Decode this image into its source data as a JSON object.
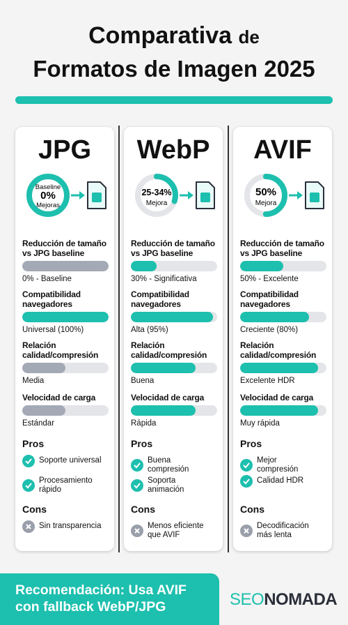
{
  "header": {
    "title_main": "Comparativa",
    "title_small": "de",
    "title_line2": "Formatos de Imagen 2025"
  },
  "cards": [
    {
      "name": "JPG",
      "ring": {
        "top": "Baseline",
        "big": "0%",
        "bottom": "Mejoras",
        "fill": 100
      },
      "metrics": [
        {
          "label": [
            "Reducción de tamaño",
            "vs JPG baseline"
          ],
          "fill": 100,
          "color": "#a3a9b5",
          "value": "0% - Baseline"
        },
        {
          "label": [
            "Compatibilidad",
            "navegadores"
          ],
          "fill": 100,
          "color": "#1dbfae",
          "value": "Universal (100%)"
        },
        {
          "label": [
            "Relación",
            "calidad/compresión"
          ],
          "fill": 50,
          "color": "#a3a9b5",
          "value": "Media"
        },
        {
          "label": [
            "Velocidad de carga"
          ],
          "fill": 50,
          "color": "#a3a9b5",
          "value": "Estándar"
        }
      ],
      "pros_title": "Pros",
      "pros": [
        [
          "Soporte universal"
        ],
        [
          "Procesamiento",
          "rápido"
        ]
      ],
      "cons_title": "Cons",
      "cons": [
        [
          "Sin transparencia"
        ]
      ]
    },
    {
      "name": "WebP",
      "ring": {
        "big": "25-34%",
        "bottom": "Mejora",
        "fill": 30
      },
      "metrics": [
        {
          "label": [
            "Reducción de tamaño",
            "vs JPG baseline"
          ],
          "fill": 30,
          "color": "#1dbfae",
          "value": "30% - Significativa"
        },
        {
          "label": [
            "Compatibilidad",
            "navegadores"
          ],
          "fill": 95,
          "color": "#1dbfae",
          "value": "Alta (95%)"
        },
        {
          "label": [
            "Relación",
            "calidad/compresión"
          ],
          "fill": 75,
          "color": "#1dbfae",
          "value": "Buena"
        },
        {
          "label": [
            "Velocidad de carga"
          ],
          "fill": 75,
          "color": "#1dbfae",
          "value": "Rápida"
        }
      ],
      "pros_title": "Pros",
      "pros": [
        [
          "Buena",
          "compresión"
        ],
        [
          "Soporta",
          "animación"
        ]
      ],
      "cons_title": "Cons",
      "cons": [
        [
          "Menos eficiente",
          "que AVIF"
        ]
      ]
    },
    {
      "name": "AVIF",
      "ring": {
        "big": "50%",
        "bottom": "Mejora",
        "fill": 50
      },
      "metrics": [
        {
          "label": [
            "Reducción de tamaño",
            "vs JPG baseline"
          ],
          "fill": 50,
          "color": "#1dbfae",
          "value": "50% - Excelente"
        },
        {
          "label": [
            "Compatibilidad",
            "navegadores"
          ],
          "fill": 80,
          "color": "#1dbfae",
          "value": "Creciente (80%)"
        },
        {
          "label": [
            "Relación",
            "calidad/compresión"
          ],
          "fill": 90,
          "color": "#1dbfae",
          "value": "Excelente HDR"
        },
        {
          "label": [
            "Velocidad de carga"
          ],
          "fill": 90,
          "color": "#1dbfae",
          "value": "Muy rápida"
        }
      ],
      "pros_title": "Pros",
      "pros": [
        [
          "Mejor",
          "compresión"
        ],
        [
          "Calidad HDR"
        ]
      ],
      "cons_title": "Cons",
      "cons": [
        [
          "Decodificación",
          "más lenta"
        ]
      ]
    }
  ],
  "footer": {
    "recommendation": [
      "Recomendación: Usa AVIF",
      "con fallback WebP/JPG"
    ],
    "logo_a": "SEO",
    "logo_b": "NOMADA"
  }
}
